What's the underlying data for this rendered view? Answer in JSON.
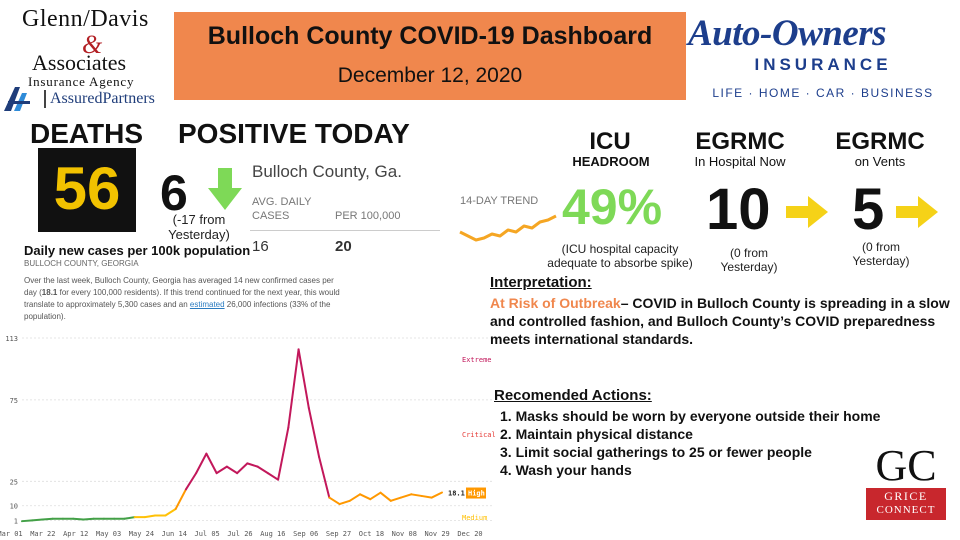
{
  "logos": {
    "glenn_davis_line1": "Glenn/Davis",
    "ampersand": "&",
    "glenn_davis_line2": "Associates",
    "glenn_davis_line3": "Insurance Agency",
    "assured": "AssuredPartners",
    "auto_owners": "Auto-Owners",
    "auto_owners_sub": "INSURANCE",
    "auto_owners_tagline": "LIFE · HOME · CAR · BUSINESS",
    "grice_letters": "GC",
    "grice_line1": "GRICE",
    "grice_line2": "CONNECT"
  },
  "banner": {
    "title": "Bulloch County COVID-19 Dashboard",
    "date": "December 12, 2020",
    "color": "#f0874d"
  },
  "deaths": {
    "label": "DEATHS",
    "value": "56"
  },
  "positive": {
    "label": "POSITIVE TODAY",
    "value": "6",
    "note": "(-17 from Yesterday)",
    "trend_icon": "arrow-down-icon"
  },
  "county_table": {
    "title": "Bulloch County, Ga.",
    "col1_header": "AVG. DAILY CASES",
    "col2_header": "PER 100,000",
    "col1_value": "16",
    "col2_value": "20",
    "trend_label": "14-DAY TREND"
  },
  "icu": {
    "label": "ICU",
    "sublabel": "HEADROOM",
    "value": "49%",
    "note": "(ICU hospital capacity adequate to absorbe spike)"
  },
  "egrmc_hospital": {
    "label": "EGRMC",
    "sublabel": "In Hospital Now",
    "value": "10",
    "note": "(0 from Yesterday)"
  },
  "egrmc_vents": {
    "label": "EGRMC",
    "sublabel": "on Vents",
    "value": "5",
    "note": "(0 from Yesterday)"
  },
  "chart_text": {
    "title": "Daily new cases per 100k population",
    "subtitle": "BULLOCH COUNTY, GEORGIA",
    "desc_part1": "Over the last week, Bulloch County, Georgia has averaged 14 new confirmed cases per day (",
    "desc_bold": "18.1",
    "desc_part2": " for every 100,000 residents). If this trend continued for the next year, this would translate to approximately 5,300 cases and an ",
    "desc_link": "estimated",
    "desc_part3": " 26,000 infections (33% of the population)."
  },
  "chart_data": {
    "type": "line",
    "title": "Daily new cases per 100k population",
    "ylim": [
      0,
      113
    ],
    "y_ticks": [
      "1",
      "10",
      "25",
      "75",
      "113"
    ],
    "x_ticks": [
      "Mar 01",
      "Mar 22",
      "Apr 12",
      "May 03",
      "May 24",
      "Jun 14",
      "Jul 05",
      "Jul 26",
      "Aug 16",
      "Sep 06",
      "Sep 27",
      "Oct 18",
      "Nov 08",
      "Nov 29",
      "Dec 20"
    ],
    "zone_labels": [
      "Extreme",
      "Critical",
      "High",
      "Medium"
    ],
    "zone_colors": [
      "#c2185b",
      "#e53935",
      "#ff9800",
      "#ffc107"
    ],
    "current_value": "18.1",
    "current_level": "High",
    "x": [
      "Mar 01",
      "Mar 08",
      "Mar 15",
      "Mar 22",
      "Mar 29",
      "Apr 05",
      "Apr 12",
      "Apr 19",
      "Apr 26",
      "May 03",
      "May 10",
      "May 17",
      "May 24",
      "May 31",
      "Jun 07",
      "Jun 14",
      "Jun 21",
      "Jun 28",
      "Jul 05",
      "Jul 12",
      "Jul 19",
      "Jul 26",
      "Aug 02",
      "Aug 09",
      "Aug 16",
      "Aug 23",
      "Aug 30",
      "Sep 06",
      "Sep 13",
      "Sep 20",
      "Sep 27",
      "Oct 04",
      "Oct 11",
      "Oct 18",
      "Oct 25",
      "Nov 01",
      "Nov 08",
      "Nov 15",
      "Nov 22",
      "Nov 29",
      "Dec 06",
      "Dec 12"
    ],
    "y": [
      0.5,
      1,
      1.5,
      2,
      2,
      2,
      1.5,
      2,
      2,
      2,
      2,
      3,
      3,
      4,
      4,
      8,
      20,
      30,
      42,
      30,
      34,
      30,
      36,
      34,
      30,
      26,
      58,
      106,
      70,
      40,
      15,
      11,
      13,
      17,
      14,
      18,
      13,
      15,
      17,
      16,
      15,
      18.1
    ]
  },
  "interpretation": {
    "heading": "Interpretation:",
    "risk": "At Risk of Outbreak",
    "text": "– COVID in Bulloch County is spreading in a slow and controlled fashion, and Bulloch County’s COVID preparedness meets international standards."
  },
  "actions": {
    "heading": "Recomended Actions:",
    "items": [
      "1. Masks should be worn by everyone outside their home",
      "2. Maintain physical distance",
      "3. Limit social gatherings to 25 or fewer people",
      "4. Wash your hands"
    ]
  }
}
